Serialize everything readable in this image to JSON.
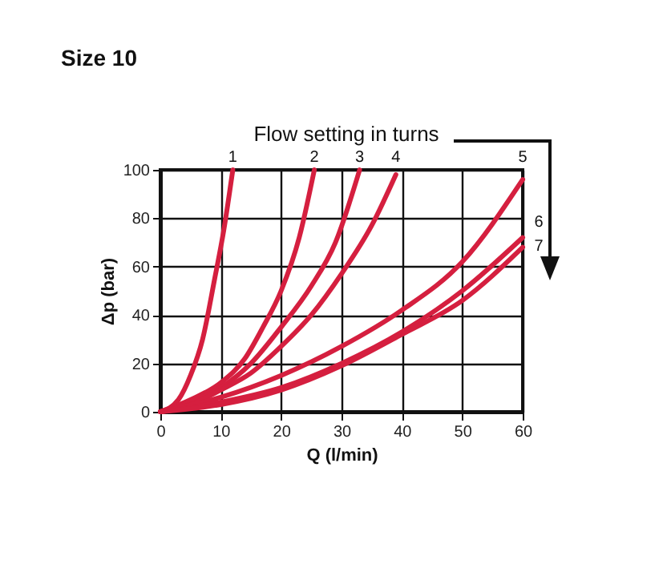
{
  "chart_data": {
    "type": "line",
    "title": "Size 10",
    "xlabel": "Q (l/min)",
    "ylabel": "Δp (bar)",
    "annotations": [
      "Flow setting in turns"
    ],
    "xlim": [
      0,
      60
    ],
    "ylim": [
      0,
      100
    ],
    "xticks": [
      0,
      10,
      20,
      30,
      40,
      50,
      60
    ],
    "yticks": [
      0,
      20,
      40,
      60,
      80,
      100
    ],
    "grid": true,
    "legend": false,
    "marker": "none",
    "line_style": "solid",
    "series": [
      {
        "name": "1",
        "color": "#d51f3f",
        "x": [
          0,
          3,
          5,
          7,
          9,
          10.5,
          12
        ],
        "values": [
          0,
          5,
          15,
          30,
          55,
          75,
          100
        ]
      },
      {
        "name": "2",
        "color": "#d51f3f",
        "x": [
          0,
          5,
          10,
          14,
          17,
          20,
          23,
          25.5
        ],
        "values": [
          0,
          5,
          12,
          22,
          35,
          50,
          72,
          100
        ]
      },
      {
        "name": "3",
        "color": "#d51f3f",
        "x": [
          0,
          5,
          10,
          15,
          20,
          25,
          29,
          33
        ],
        "values": [
          0,
          4,
          10,
          20,
          35,
          52,
          70,
          100
        ]
      },
      {
        "name": "4",
        "color": "#d51f3f",
        "x": [
          0,
          5,
          10,
          15,
          20,
          25,
          30,
          35,
          39
        ],
        "values": [
          0,
          3,
          9,
          16,
          27,
          40,
          57,
          77,
          98
        ]
      },
      {
        "name": "5",
        "color": "#d51f3f",
        "x": [
          0,
          10,
          20,
          30,
          40,
          50,
          60
        ],
        "values": [
          0,
          6,
          15,
          27,
          42,
          62,
          96
        ]
      },
      {
        "name": "6",
        "color": "#d51f3f",
        "x": [
          0,
          10,
          20,
          30,
          40,
          50,
          60
        ],
        "values": [
          0,
          4,
          10,
          20,
          33,
          50,
          72
        ]
      },
      {
        "name": "7",
        "color": "#d51f3f",
        "x": [
          0,
          10,
          20,
          30,
          40,
          50,
          60
        ],
        "values": [
          0,
          3,
          9,
          19,
          32,
          46,
          68
        ]
      }
    ]
  }
}
